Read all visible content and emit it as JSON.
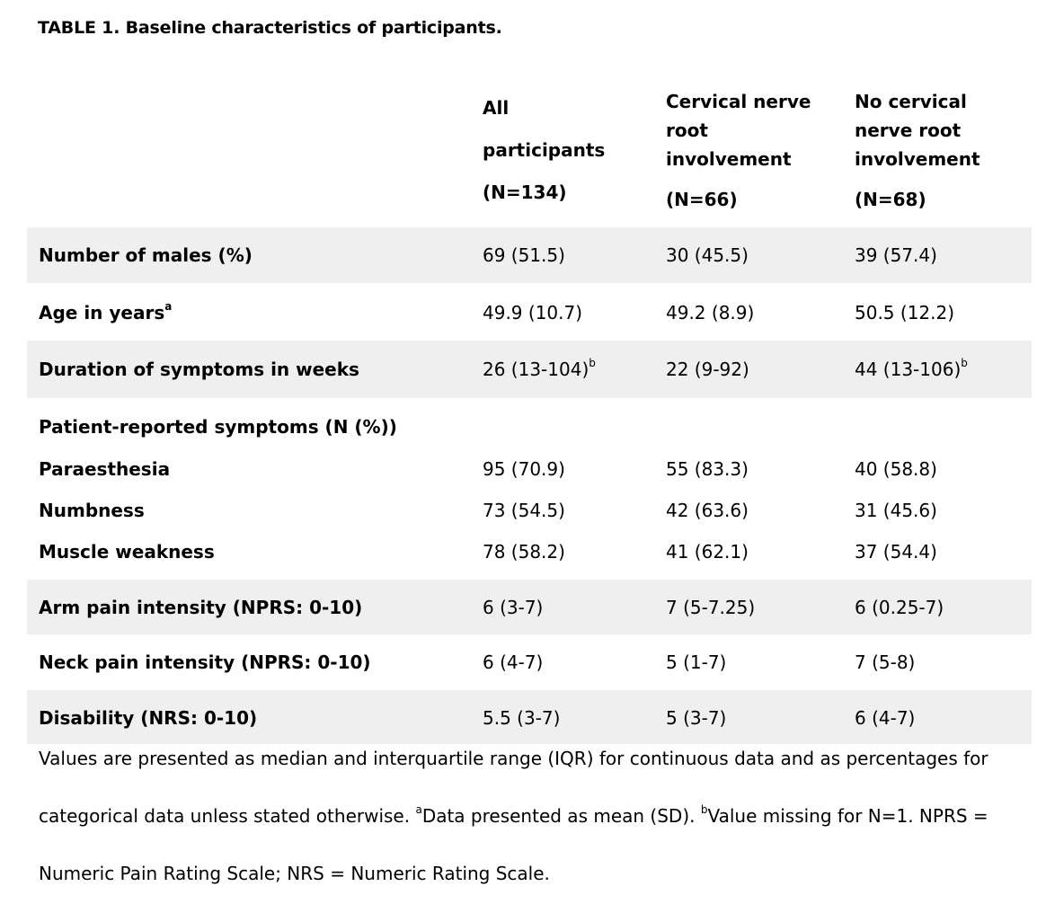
{
  "table": {
    "title": "TABLE 1. Baseline characteristics of participants.",
    "columns": [
      {
        "lines": [
          "All",
          "participants",
          "(N=134)"
        ]
      },
      {
        "lines": [
          "Cervical nerve",
          "root",
          "involvement",
          "(N=66)"
        ]
      },
      {
        "lines": [
          "No cervical",
          "nerve root",
          "involvement",
          "(N=68)"
        ]
      }
    ],
    "rows": [
      {
        "label": "Number of males (%)",
        "label_sup": "",
        "v": [
          "69 (51.5)",
          "30 (45.5)",
          "39 (57.4)"
        ],
        "s": [
          "",
          "",
          ""
        ]
      },
      {
        "label": "Age in years",
        "label_sup": "a",
        "v": [
          "49.9 (10.7)",
          "49.2 (8.9)",
          "50.5 (12.2)"
        ],
        "s": [
          "",
          "",
          ""
        ]
      },
      {
        "label": "Duration of symptoms in weeks",
        "label_sup": "",
        "v": [
          "26 (13-104)",
          "22 (9-92)",
          "44 (13-106)"
        ],
        "s": [
          "b",
          "",
          "b"
        ]
      },
      {
        "label": "Patient-reported symptoms (N (%))"
      },
      {
        "label": "Paraesthesia",
        "v": [
          "95 (70.9)",
          "55 (83.3)",
          "40 (58.8)"
        ]
      },
      {
        "label": "Numbness",
        "v": [
          "73 (54.5)",
          "42 (63.6)",
          "31 (45.6)"
        ]
      },
      {
        "label": "Muscle weakness",
        "v": [
          "78 (58.2)",
          "41 (62.1)",
          "37 (54.4)"
        ]
      },
      {
        "label": "Arm pain intensity (NPRS: 0-10)",
        "v": [
          "6 (3-7)",
          "7 (5-7.25)",
          "6 (0.25-7)"
        ]
      },
      {
        "label": "Neck pain intensity (NPRS: 0-10)",
        "v": [
          "6 (4-7)",
          "5 (1-7)",
          "7 (5-8)"
        ]
      },
      {
        "label": "Disability (NRS: 0-10)",
        "v": [
          "5.5 (3-7)",
          "5 (3-7)",
          "6 (4-7)"
        ]
      }
    ]
  },
  "footnote": {
    "line1": "Values are presented as median and interquartile range (IQR) for continuous data and as percentages for",
    "line2a": "categorical data unless stated otherwise. ",
    "sup_a": "a",
    "line2b": "Data presented as mean (SD). ",
    "sup_b": "b",
    "line2c": "Value missing for N=1. NPRS =",
    "line3": "Numeric Pain Rating Scale; NRS = Numeric Rating Scale."
  }
}
